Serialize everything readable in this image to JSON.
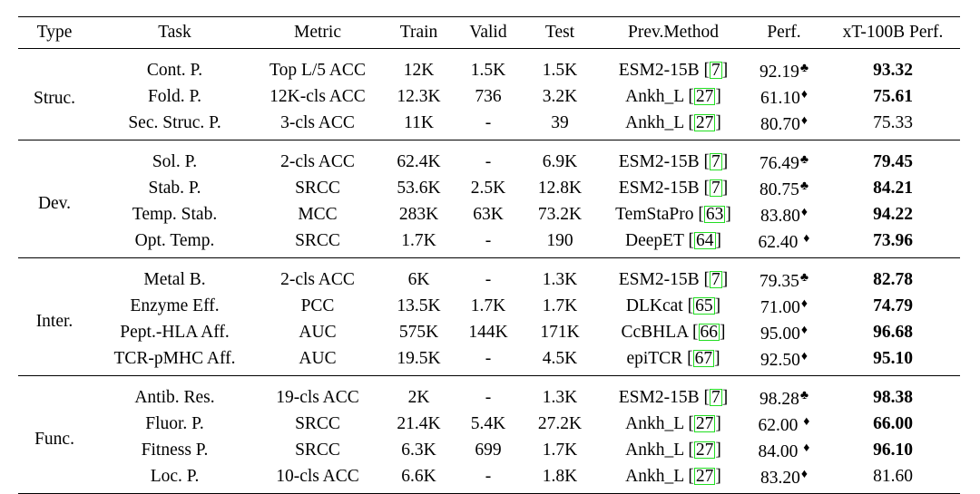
{
  "headers": [
    "Type",
    "Task",
    "Metric",
    "Train",
    "Valid",
    "Test",
    "Prev.Method",
    "Perf.",
    "xT-100B Perf."
  ],
  "groups": [
    {
      "type": "Struc.",
      "rows": [
        {
          "task": "Cont. P.",
          "metric": "Top L/5 ACC",
          "train": "12K",
          "valid": "1.5K",
          "test": "1.5K",
          "method": "ESM2-15B",
          "ref": "7",
          "perf": "92.19",
          "mark": "♣",
          "xt": "93.32",
          "best": true
        },
        {
          "task": "Fold. P.",
          "metric": "12K-cls ACC",
          "train": "12.3K",
          "valid": "736",
          "test": "3.2K",
          "method": "Ankh_L",
          "ref": "27",
          "perf": "61.10",
          "mark": "♦",
          "xt": "75.61",
          "best": true
        },
        {
          "task": "Sec. Struc. P.",
          "metric": "3-cls ACC",
          "train": "11K",
          "valid": "-",
          "test": "39",
          "method": "Ankh_L",
          "ref": "27",
          "perf": "80.70",
          "mark": "♦",
          "xt": "75.33",
          "best": false
        }
      ]
    },
    {
      "type": "Dev.",
      "rows": [
        {
          "task": "Sol. P.",
          "metric": "2-cls ACC",
          "train": "62.4K",
          "valid": "-",
          "test": "6.9K",
          "method": "ESM2-15B",
          "ref": "7",
          "perf": "76.49",
          "mark": "♣",
          "xt": "79.45",
          "best": true
        },
        {
          "task": "Stab. P.",
          "metric": "SRCC",
          "train": "53.6K",
          "valid": "2.5K",
          "test": "12.8K",
          "method": "ESM2-15B",
          "ref": "7",
          "perf": "80.75",
          "mark": "♣",
          "xt": "84.21",
          "best": true
        },
        {
          "task": "Temp. Stab.",
          "metric": "MCC",
          "train": "283K",
          "valid": "63K",
          "test": "73.2K",
          "method": "TemStaPro",
          "ref": "63",
          "perf": "83.80",
          "mark": "♦",
          "xt": "94.22",
          "best": true
        },
        {
          "task": "Opt. Temp.",
          "metric": "SRCC",
          "train": "1.7K",
          "valid": "-",
          "test": "190",
          "method": "DeepET",
          "ref": "64",
          "perf": "62.40 ",
          "mark": "♦",
          "xt": "73.96",
          "best": true
        }
      ]
    },
    {
      "type": "Inter.",
      "rows": [
        {
          "task": "Metal B.",
          "metric": "2-cls ACC",
          "train": "6K",
          "valid": "-",
          "test": "1.3K",
          "method": "ESM2-15B",
          "ref": "7",
          "perf": "79.35",
          "mark": "♣",
          "xt": "82.78",
          "best": true
        },
        {
          "task": "Enzyme Eff.",
          "metric": "PCC",
          "train": "13.5K",
          "valid": "1.7K",
          "test": "1.7K",
          "method": "DLKcat",
          "ref": "65",
          "perf": "71.00",
          "mark": "♦",
          "xt": "74.79",
          "best": true
        },
        {
          "task": "Pept.-HLA Aff.",
          "metric": "AUC",
          "train": "575K",
          "valid": "144K",
          "test": "171K",
          "method": "CcBHLA",
          "ref": "66",
          "perf": "95.00",
          "mark": "♦",
          "xt": "96.68",
          "best": true
        },
        {
          "task": "TCR-pMHC Aff.",
          "metric": "AUC",
          "train": "19.5K",
          "valid": "-",
          "test": "4.5K",
          "method": "epiTCR",
          "ref": "67",
          "perf": "92.50",
          "mark": "♦",
          "xt": "95.10",
          "best": true
        }
      ]
    },
    {
      "type": "Func.",
      "rows": [
        {
          "task": "Antib. Res.",
          "metric": "19-cls ACC",
          "train": "2K",
          "valid": "-",
          "test": "1.3K",
          "method": "ESM2-15B",
          "ref": "7",
          "perf": "98.28",
          "mark": "♣",
          "xt": "98.38",
          "best": true
        },
        {
          "task": "Fluor. P.",
          "metric": "SRCC",
          "train": "21.4K",
          "valid": "5.4K",
          "test": "27.2K",
          "method": "Ankh_L",
          "ref": "27",
          "perf": "62.00 ",
          "mark": "♦",
          "xt": "66.00",
          "best": true
        },
        {
          "task": "Fitness P.",
          "metric": "SRCC",
          "train": "6.3K",
          "valid": "699",
          "test": "1.7K",
          "method": "Ankh_L",
          "ref": "27",
          "perf": "84.00 ",
          "mark": "♦",
          "xt": "96.10",
          "best": true
        },
        {
          "task": "Loc. P.",
          "metric": "10-cls ACC",
          "train": "6.6K",
          "valid": "-",
          "test": "1.8K",
          "method": "Ankh_L",
          "ref": "27",
          "perf": "83.20",
          "mark": "♦",
          "xt": "81.60",
          "best": false
        }
      ]
    }
  ],
  "colors": {
    "text": "#000000",
    "cite_box": "#22dd22"
  }
}
